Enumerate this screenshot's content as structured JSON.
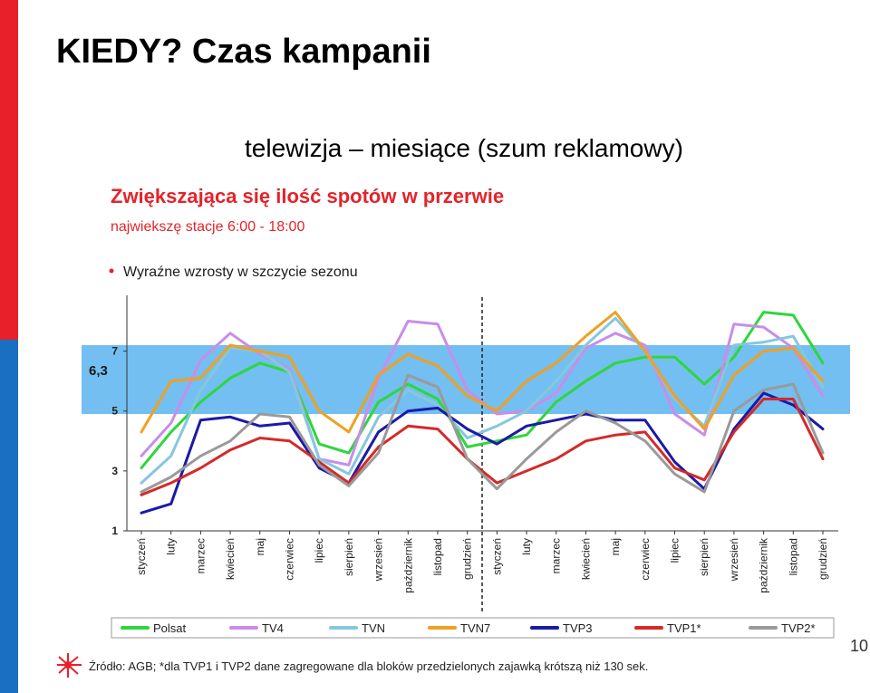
{
  "slide": {
    "title": "KIEDY? Czas kampanii",
    "subtitle": "telewizja – miesiące (szum reklamowy)",
    "slide_number": "10",
    "source_note": "Źródło: AGB; *dla TVP1 i TVP2 dane zagregowane dla bloków przedzielonych zajawką krótszą niż 130 sek."
  },
  "colors": {
    "accent_red": "#e8202a",
    "accent_blue": "#1a6fc2",
    "band": "#5ab4ef",
    "heading_red": "#e3242b"
  },
  "chart_data": {
    "type": "line",
    "title": "Zwiększająca się ilość spotów w przerwie",
    "subtitle": "najwiekszę stacje 6:00 - 18:00",
    "bullet": "Wyraźne wzrosty w szczycie sezonu",
    "band": {
      "from": 4.9,
      "to": 7.2,
      "label": "6,3"
    },
    "y_ticks": [
      "1",
      "3",
      "5",
      "7"
    ],
    "ylim": [
      1,
      8.5
    ],
    "divider_after_index": 11,
    "categories": [
      "styczeń",
      "luty",
      "marzec",
      "kwiecień",
      "maj",
      "czerwiec",
      "lipiec",
      "sierpień",
      "wrzesień",
      "październik",
      "listopad",
      "grudzień",
      "styczeń",
      "luty",
      "marzec",
      "kwiecień",
      "maj",
      "czerwiec",
      "lipiec",
      "sierpień",
      "wrzesień",
      "październik",
      "listopad",
      "grudzień"
    ],
    "series": [
      {
        "name": "Polsat",
        "color": "#2fd63a",
        "values": [
          3.1,
          4.3,
          5.3,
          6.1,
          6.6,
          6.3,
          3.9,
          3.6,
          5.3,
          5.9,
          5.4,
          3.8,
          4.0,
          4.2,
          5.3,
          6.0,
          6.6,
          6.8,
          6.8,
          5.9,
          6.8,
          8.3,
          8.2,
          6.6
        ]
      },
      {
        "name": "TV4",
        "color": "#c98de8",
        "values": [
          3.5,
          4.6,
          6.7,
          7.6,
          6.9,
          6.4,
          3.4,
          3.2,
          6.1,
          8.0,
          7.9,
          5.7,
          4.9,
          5.0,
          5.6,
          7.1,
          7.6,
          7.2,
          4.9,
          4.2,
          7.9,
          7.8,
          7.1,
          5.5
        ]
      },
      {
        "name": "TVN",
        "color": "#86c7dd",
        "values": [
          2.6,
          3.5,
          5.7,
          7.1,
          7.0,
          6.3,
          3.4,
          2.9,
          4.8,
          5.7,
          5.2,
          4.1,
          4.5,
          5.0,
          6.0,
          7.2,
          8.1,
          7.0,
          5.4,
          4.5,
          7.2,
          7.3,
          7.5,
          5.8
        ]
      },
      {
        "name": "TVN7",
        "color": "#f0a023",
        "values": [
          4.3,
          6.0,
          6.1,
          7.2,
          7.0,
          6.8,
          5.0,
          4.3,
          6.2,
          6.9,
          6.5,
          5.5,
          5.0,
          6.0,
          6.6,
          7.5,
          8.3,
          7.0,
          5.5,
          4.4,
          6.2,
          7.0,
          7.1,
          6.0
        ]
      },
      {
        "name": "TVP3",
        "color": "#1a1aa8",
        "values": [
          1.6,
          1.9,
          4.7,
          4.8,
          4.5,
          4.6,
          3.1,
          2.6,
          4.3,
          5.0,
          5.1,
          4.4,
          3.9,
          4.5,
          4.7,
          4.9,
          4.7,
          4.7,
          3.3,
          2.4,
          4.4,
          5.6,
          5.2,
          4.4
        ]
      },
      {
        "name": "TVP1*",
        "color": "#d42a2a",
        "values": [
          2.2,
          2.6,
          3.1,
          3.7,
          4.1,
          4.0,
          3.3,
          2.6,
          3.8,
          4.5,
          4.4,
          3.4,
          2.6,
          3.0,
          3.4,
          4.0,
          4.2,
          4.3,
          3.1,
          2.7,
          4.3,
          5.4,
          5.4,
          3.4
        ]
      },
      {
        "name": "TVP2*",
        "color": "#9a9a9a",
        "values": [
          2.3,
          2.8,
          3.5,
          4.0,
          4.9,
          4.8,
          3.2,
          2.5,
          3.6,
          6.2,
          5.8,
          3.4,
          2.4,
          3.4,
          4.3,
          5.0,
          4.6,
          4.0,
          2.9,
          2.3,
          5.0,
          5.7,
          5.9,
          3.6
        ]
      }
    ]
  }
}
